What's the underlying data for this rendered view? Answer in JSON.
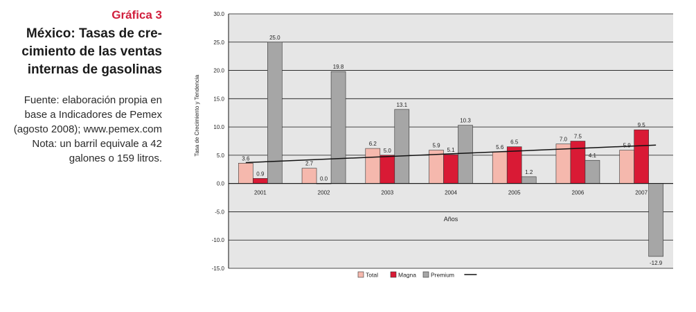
{
  "figure": {
    "label": "Gráfica 3",
    "title_lines": [
      "México: Tasas de cre-",
      "cimiento de las ventas",
      "internas de gasolinas"
    ],
    "source_lines": [
      "Fuente: elaboración propia en",
      "base a Indicadores de Pemex",
      "(agosto 2008); www.pemex.com",
      "Nota: un barril equivale a 42",
      "galones o 159 litros."
    ]
  },
  "chart_data": {
    "type": "bar",
    "title": "",
    "xlabel": "Años",
    "ylabel": "Tasa de Crecimiento y Tendencia",
    "categories": [
      "2001",
      "2002",
      "2003",
      "2004",
      "2005",
      "2006",
      "2007"
    ],
    "series": [
      {
        "name": "Total",
        "color": "#f5b8ad",
        "values": [
          3.6,
          2.7,
          6.2,
          5.9,
          5.6,
          7.0,
          5.9
        ],
        "labels": [
          "3.6",
          "2.7",
          "6.2",
          "5.9",
          "5.6",
          "7.0",
          "5.9"
        ]
      },
      {
        "name": "Magna",
        "color": "#d91a35",
        "values": [
          0.9,
          0.0,
          5.0,
          5.1,
          6.5,
          7.5,
          9.5
        ],
        "labels": [
          "0.9",
          "0.0",
          "5.0",
          "5.1",
          "6.5",
          "7.5",
          "9.5"
        ]
      },
      {
        "name": "Premium",
        "color": "#a6a6a6",
        "values": [
          25.0,
          19.8,
          13.1,
          10.3,
          1.2,
          4.1,
          -12.9
        ],
        "labels": [
          "25.0",
          "19.8",
          "13.1",
          "10.3",
          "1.2",
          "4.1",
          "-12.9"
        ]
      }
    ],
    "trend": {
      "name": "",
      "color": "#111111",
      "start": 3.7,
      "end": 6.8
    },
    "ylim": [
      -15,
      30
    ],
    "yticks": [
      "30.0",
      "25.0",
      "20.0",
      "15.0",
      "10.0",
      "5.0",
      "0.0",
      "-5.0",
      "-10.0",
      "-15.0"
    ],
    "grid": true,
    "legend_position": "bottom",
    "plot_background": "#e6e6e6"
  }
}
